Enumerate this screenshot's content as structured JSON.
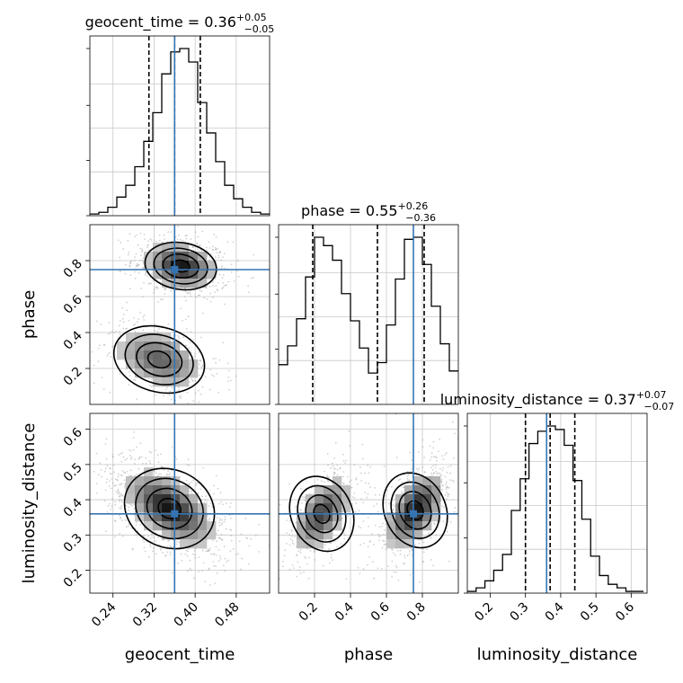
{
  "chart_data": {
    "type": "corner",
    "parameters": [
      "geocent_time",
      "phase",
      "luminosity_distance"
    ],
    "truths": {
      "geocent_time": 0.36,
      "phase": 0.75,
      "luminosity_distance": 0.36
    },
    "colors": {
      "truth": "#3574b2",
      "line": "#000000",
      "grid": "#c8c8c8",
      "scatter": "#9a9a9a"
    },
    "grid": true,
    "titles": {
      "geocent_time": {
        "name": "geocent_time",
        "median": "0.36",
        "plus": "+0.05",
        "minus": "−0.05"
      },
      "phase": {
        "name": "phase",
        "median": "0.55",
        "plus": "+0.26",
        "minus": "−0.36"
      },
      "luminosity_distance": {
        "name": "luminosity_distance",
        "median": "0.37",
        "plus": "+0.07",
        "minus": "−0.07"
      }
    },
    "axis_labels": {
      "geocent_time": "geocent_time",
      "phase": "phase",
      "luminosity_distance": "luminosity_distance"
    },
    "ranges": {
      "geocent_time": [
        0.195,
        0.545
      ],
      "phase": [
        0.0,
        1.0
      ],
      "luminosity_distance": [
        0.135,
        0.645
      ]
    },
    "ticks": {
      "geocent_time": [
        "0.24",
        "0.32",
        "0.40",
        "0.48"
      ],
      "phase": [
        "0.2",
        "0.4",
        "0.6",
        "0.8"
      ],
      "luminosity_distance": [
        "0.2",
        "0.3",
        "0.4",
        "0.5",
        "0.6"
      ]
    },
    "histograms": {
      "geocent_time": {
        "bins": [
          0.195,
          0.2125,
          0.23,
          0.2475,
          0.265,
          0.2825,
          0.3,
          0.3175,
          0.335,
          0.3525,
          0.37,
          0.3875,
          0.405,
          0.4225,
          0.44,
          0.4575,
          0.475,
          0.4925,
          0.51,
          0.5275,
          0.545
        ],
        "counts": [
          0.01,
          0.02,
          0.05,
          0.11,
          0.18,
          0.29,
          0.44,
          0.61,
          0.84,
          0.97,
          0.99,
          0.91,
          0.67,
          0.49,
          0.32,
          0.18,
          0.1,
          0.05,
          0.02,
          0.01
        ],
        "quantiles": [
          0.31,
          0.36,
          0.41
        ]
      },
      "phase": {
        "bins": [
          0.0,
          0.05,
          0.1,
          0.15,
          0.2,
          0.25,
          0.3,
          0.35,
          0.4,
          0.45,
          0.5,
          0.55,
          0.6,
          0.65,
          0.7,
          0.75,
          0.8,
          0.85,
          0.9,
          0.95,
          1.0
        ],
        "counts": [
          0.19,
          0.28,
          0.41,
          0.61,
          0.8,
          0.76,
          0.69,
          0.53,
          0.4,
          0.27,
          0.15,
          0.2,
          0.38,
          0.6,
          0.79,
          0.8,
          0.67,
          0.47,
          0.29,
          0.16
        ],
        "quantiles": [
          0.19,
          0.55,
          0.81
        ]
      },
      "luminosity_distance": {
        "bins": [
          0.135,
          0.16,
          0.185,
          0.21,
          0.235,
          0.26,
          0.285,
          0.31,
          0.335,
          0.36,
          0.385,
          0.41,
          0.435,
          0.46,
          0.485,
          0.51,
          0.535,
          0.56,
          0.585,
          0.61,
          0.635
        ],
        "counts": [
          0.01,
          0.03,
          0.07,
          0.13,
          0.22,
          0.47,
          0.65,
          0.85,
          0.92,
          0.95,
          0.93,
          0.84,
          0.64,
          0.42,
          0.21,
          0.1,
          0.05,
          0.03,
          0.01,
          0.01
        ],
        "quantiles": [
          0.3,
          0.37,
          0.44
        ]
      }
    },
    "pairs": [
      {
        "x": "geocent_time",
        "y": "phase",
        "modes": [
          {
            "cx": 0.372,
            "cy": 0.77,
            "sx": 0.035,
            "sy": 0.065,
            "rho": -0.2,
            "peak": 1.0
          },
          {
            "cx": 0.33,
            "cy": 0.25,
            "sx": 0.045,
            "sy": 0.09,
            "rho": -0.35,
            "peak": 0.65
          }
        ]
      },
      {
        "x": "geocent_time",
        "y": "luminosity_distance",
        "modes": [
          {
            "cx": 0.35,
            "cy": 0.375,
            "sx": 0.045,
            "sy": 0.055,
            "rho": -0.55,
            "peak": 1.0
          }
        ]
      },
      {
        "x": "phase",
        "y": "luminosity_distance",
        "modes": [
          {
            "cx": 0.24,
            "cy": 0.36,
            "sx": 0.085,
            "sy": 0.055,
            "rho": 0.55,
            "peak": 0.8
          },
          {
            "cx": 0.76,
            "cy": 0.37,
            "sx": 0.085,
            "sy": 0.055,
            "rho": 0.55,
            "peak": 1.0
          }
        ]
      }
    ]
  }
}
